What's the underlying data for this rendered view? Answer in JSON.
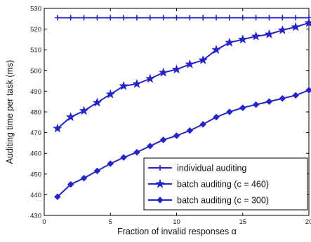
{
  "chart_data": {
    "type": "line",
    "xlabel": "Fraction of invalid responses α",
    "ylabel": "Auditing time per task (ms)",
    "xlim": [
      0,
      20
    ],
    "ylim": [
      430,
      530
    ],
    "xticks": [
      0,
      5,
      10,
      15,
      20
    ],
    "xtick_labels": [
      "0",
      "5",
      "10",
      "15",
      "20"
    ],
    "yticks": [
      430,
      440,
      450,
      460,
      470,
      480,
      490,
      500,
      510,
      520,
      530
    ],
    "ytick_labels": [
      "430",
      "440",
      "450",
      "460",
      "470",
      "480",
      "490",
      "500",
      "510",
      "520",
      "530"
    ],
    "grid": false,
    "legend_position": "bottom-right",
    "x": [
      1,
      2,
      3,
      4,
      5,
      6,
      7,
      8,
      9,
      10,
      11,
      12,
      13,
      14,
      15,
      16,
      17,
      18,
      19,
      20
    ],
    "series": [
      {
        "name": "individual auditing",
        "marker": "plus",
        "color": "#2424c8",
        "values": [
          525.5,
          525.5,
          525.5,
          525.5,
          525.5,
          525.5,
          525.5,
          525.5,
          525.5,
          525.5,
          525.5,
          525.5,
          525.5,
          525.5,
          525.5,
          525.5,
          525.5,
          525.5,
          525.5,
          525.5
        ]
      },
      {
        "name": "batch auditing (c = 460)",
        "marker": "star",
        "color": "#2424c8",
        "values": [
          472,
          477.5,
          480.5,
          484.5,
          488.5,
          492.5,
          493.5,
          496,
          499,
          500.5,
          503,
          505,
          510,
          513.5,
          515,
          516.5,
          517.5,
          519.5,
          521,
          523
        ]
      },
      {
        "name": "batch auditing (c = 300)",
        "marker": "diamond",
        "color": "#2424c8",
        "values": [
          439,
          445,
          448,
          451.5,
          455,
          458,
          460.5,
          463.5,
          466.5,
          468.5,
          471,
          474,
          477.5,
          480,
          482,
          483.5,
          485,
          486.5,
          488,
          490.5
        ]
      }
    ]
  }
}
